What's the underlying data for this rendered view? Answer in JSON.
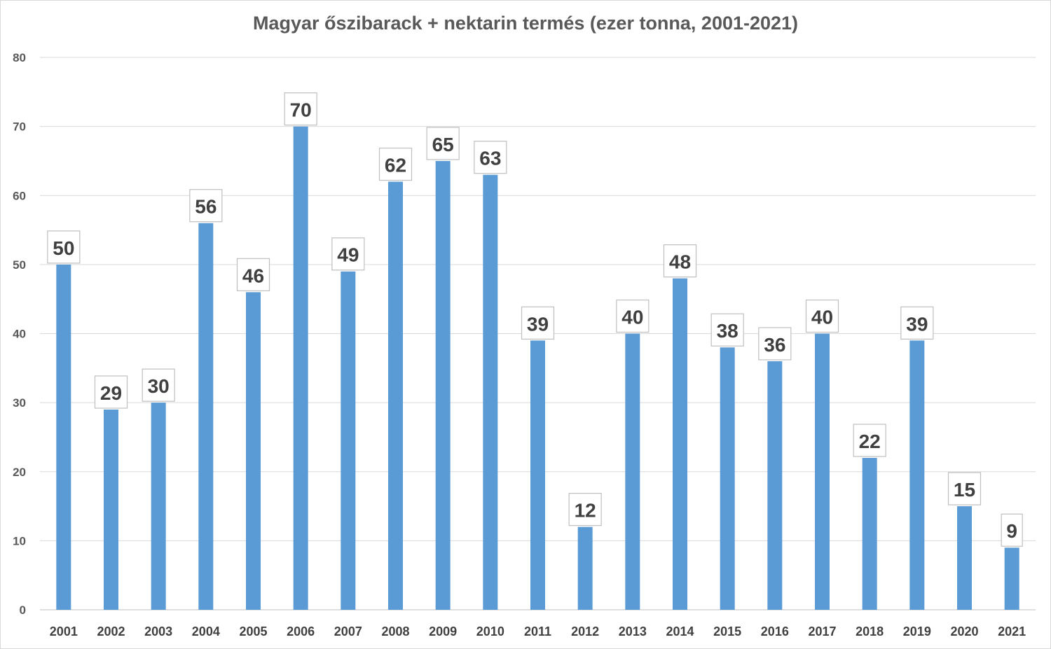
{
  "chart_data": {
    "type": "bar",
    "title": "Magyar őszibarack + nektarin termés (ezer tonna, 2001-2021)",
    "xlabel": "",
    "ylabel": "",
    "ylim": [
      0,
      80
    ],
    "yticks": [
      0,
      10,
      20,
      30,
      40,
      50,
      60,
      70,
      80
    ],
    "grid": true,
    "legend": "none",
    "bar_color": "#5b9bd5",
    "categories": [
      "2001",
      "2002",
      "2003",
      "2004",
      "2005",
      "2006",
      "2007",
      "2008",
      "2009",
      "2010",
      "2011",
      "2012",
      "2013",
      "2014",
      "2015",
      "2016",
      "2017",
      "2018",
      "2019",
      "2020",
      "2021"
    ],
    "values": [
      50,
      29,
      30,
      56,
      46,
      70,
      49,
      62,
      65,
      63,
      39,
      12,
      40,
      48,
      38,
      36,
      40,
      22,
      39,
      15,
      9
    ]
  }
}
